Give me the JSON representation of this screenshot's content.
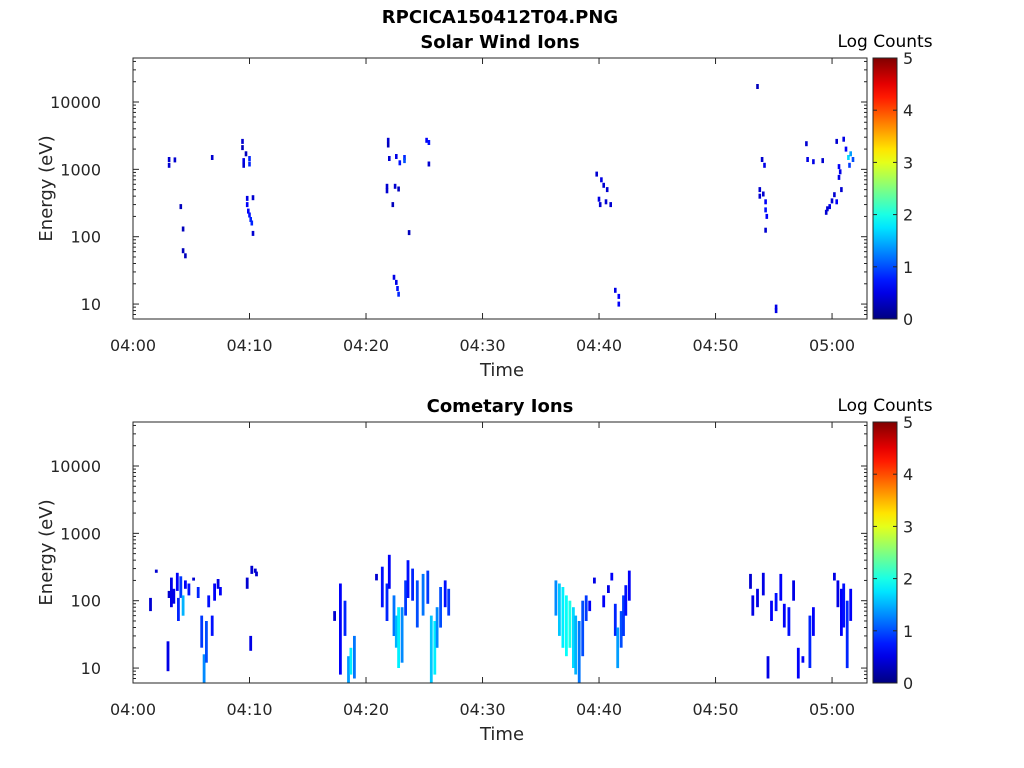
{
  "figure_title": "RPCICA150412T04.PNG",
  "chart_data": [
    {
      "type": "heatmap",
      "title": "Solar Wind Ions",
      "xlabel": "Time",
      "ylabel": "Energy (eV)",
      "yscale": "log",
      "ylim": [
        6,
        45000
      ],
      "xlim": [
        "04:00",
        "05:03"
      ],
      "x_ticks": [
        "04:00",
        "04:10",
        "04:20",
        "04:30",
        "04:40",
        "04:50",
        "05:00"
      ],
      "y_ticks": [
        "10",
        "100",
        "1000",
        "10000"
      ],
      "colorbar": {
        "label": "Log Counts",
        "min": 0,
        "max": 5,
        "ticks": [
          "0",
          "1",
          "2",
          "3",
          "4",
          "5"
        ],
        "colormap": "jet"
      },
      "grid": false,
      "points": [
        [
          3.1,
          1400,
          0.4
        ],
        [
          3.1,
          1150,
          0.4
        ],
        [
          3.6,
          1380,
          0.4
        ],
        [
          4.1,
          280,
          0.3
        ],
        [
          4.3,
          130,
          0.3
        ],
        [
          4.3,
          62,
          0.3
        ],
        [
          4.5,
          52,
          0.3
        ],
        [
          6.8,
          1500,
          0.4
        ],
        [
          9.4,
          2600,
          0.4
        ],
        [
          9.4,
          2100,
          0.3
        ],
        [
          9.7,
          1700,
          0.3
        ],
        [
          9.5,
          1350,
          0.5
        ],
        [
          9.5,
          1150,
          0.4
        ],
        [
          10.0,
          1450,
          0.8
        ],
        [
          10.0,
          1200,
          0.8
        ],
        [
          9.8,
          370,
          0.5
        ],
        [
          9.8,
          300,
          0.6
        ],
        [
          9.9,
          240,
          0.6
        ],
        [
          10.0,
          210,
          0.7
        ],
        [
          10.1,
          180,
          0.8
        ],
        [
          10.2,
          160,
          0.8
        ],
        [
          10.3,
          380,
          0.4
        ],
        [
          10.3,
          112,
          0.4
        ],
        [
          21.9,
          2700,
          0.4
        ],
        [
          21.9,
          2300,
          0.3
        ],
        [
          22.0,
          1450,
          0.4
        ],
        [
          22.6,
          1550,
          0.5
        ],
        [
          22.9,
          1250,
          0.7
        ],
        [
          23.3,
          1500,
          0.8
        ],
        [
          23.3,
          1350,
          1.0
        ],
        [
          21.8,
          560,
          0.4
        ],
        [
          21.8,
          480,
          0.4
        ],
        [
          22.5,
          560,
          0.4
        ],
        [
          22.8,
          510,
          0.3
        ],
        [
          22.3,
          300,
          0.3
        ],
        [
          23.7,
          115,
          0.3
        ],
        [
          25.2,
          2700,
          0.6
        ],
        [
          25.4,
          2500,
          0.7
        ],
        [
          25.4,
          1200,
          0.4
        ],
        [
          22.4,
          25,
          0.5
        ],
        [
          22.6,
          21,
          0.5
        ],
        [
          22.7,
          17,
          0.7
        ],
        [
          22.8,
          14,
          0.8
        ],
        [
          39.8,
          850,
          0.4
        ],
        [
          40.2,
          700,
          0.5
        ],
        [
          40.4,
          580,
          0.4
        ],
        [
          40.7,
          500,
          0.4
        ],
        [
          40.0,
          360,
          0.5
        ],
        [
          40.1,
          300,
          0.4
        ],
        [
          40.6,
          330,
          0.4
        ],
        [
          41.0,
          300,
          0.4
        ],
        [
          41.4,
          16,
          0.5
        ],
        [
          41.7,
          13,
          0.6
        ],
        [
          41.7,
          10,
          0.6
        ],
        [
          53.6,
          17000,
          0.3
        ],
        [
          54.0,
          1400,
          0.4
        ],
        [
          54.2,
          1150,
          0.5
        ],
        [
          53.8,
          500,
          0.4
        ],
        [
          53.8,
          400,
          0.4
        ],
        [
          54.1,
          430,
          0.4
        ],
        [
          54.3,
          330,
          0.6
        ],
        [
          54.3,
          250,
          0.7
        ],
        [
          54.4,
          200,
          0.6
        ],
        [
          54.3,
          125,
          0.4
        ],
        [
          55.2,
          9,
          0.5
        ],
        [
          55.2,
          8,
          0.5
        ],
        [
          57.8,
          2400,
          0.4
        ],
        [
          57.9,
          1400,
          0.5
        ],
        [
          58.4,
          1300,
          0.5
        ],
        [
          59.2,
          1350,
          0.4
        ],
        [
          60.4,
          2600,
          0.4
        ],
        [
          61.0,
          2800,
          0.5
        ],
        [
          61.2,
          2000,
          0.6
        ],
        [
          61.4,
          1500,
          1.7
        ],
        [
          61.6,
          1700,
          1.4
        ],
        [
          61.8,
          1400,
          1.0
        ],
        [
          61.5,
          1150,
          0.9
        ],
        [
          60.6,
          1100,
          0.6
        ],
        [
          60.7,
          920,
          0.5
        ],
        [
          60.6,
          760,
          0.5
        ],
        [
          60.8,
          500,
          0.4
        ],
        [
          60.2,
          420,
          0.4
        ],
        [
          60.0,
          340,
          0.4
        ],
        [
          59.8,
          280,
          0.5
        ],
        [
          59.6,
          260,
          0.4
        ],
        [
          59.5,
          230,
          0.4
        ],
        [
          60.4,
          330,
          0.6
        ]
      ]
    },
    {
      "type": "heatmap",
      "title": "Cometary Ions",
      "xlabel": "Time",
      "ylabel": "Energy (eV)",
      "yscale": "log",
      "ylim": [
        6,
        45000
      ],
      "xlim": [
        "04:00",
        "05:03"
      ],
      "x_ticks": [
        "04:00",
        "04:10",
        "04:20",
        "04:30",
        "04:40",
        "04:50",
        "05:00"
      ],
      "y_ticks": [
        "10",
        "100",
        "1000",
        "10000"
      ],
      "colorbar": {
        "label": "Log Counts",
        "min": 0,
        "max": 5,
        "ticks": [
          "0",
          "1",
          "2",
          "3",
          "4",
          "5"
        ],
        "colormap": "jet"
      },
      "grid": false,
      "columns": [
        [
          1.5,
          70,
          110,
          0.4
        ],
        [
          2.0,
          260,
          290,
          0.4
        ],
        [
          3.0,
          9,
          25,
          0.5
        ],
        [
          3.1,
          110,
          140,
          0.4
        ],
        [
          3.3,
          80,
          220,
          0.5
        ],
        [
          3.5,
          90,
          150,
          0.5
        ],
        [
          3.8,
          140,
          260,
          0.6
        ],
        [
          3.9,
          50,
          110,
          0.8
        ],
        [
          4.1,
          110,
          230,
          0.9
        ],
        [
          4.3,
          60,
          120,
          1.5
        ],
        [
          4.5,
          150,
          200,
          0.6
        ],
        [
          4.8,
          120,
          180,
          0.7
        ],
        [
          5.2,
          200,
          220,
          0.4
        ],
        [
          5.6,
          110,
          160,
          0.8
        ],
        [
          5.9,
          20,
          60,
          0.9
        ],
        [
          6.1,
          6,
          16,
          1.3
        ],
        [
          6.3,
          12,
          50,
          1.0
        ],
        [
          6.5,
          80,
          120,
          0.7
        ],
        [
          6.8,
          30,
          60,
          0.7
        ],
        [
          7.0,
          100,
          180,
          0.6
        ],
        [
          7.3,
          150,
          210,
          0.5
        ],
        [
          7.5,
          120,
          160,
          0.6
        ],
        [
          9.8,
          150,
          220,
          0.4
        ],
        [
          10.1,
          18,
          30,
          0.5
        ],
        [
          10.2,
          250,
          330,
          0.4
        ],
        [
          10.5,
          260,
          300,
          0.4
        ],
        [
          10.6,
          230,
          270,
          0.4
        ],
        [
          17.3,
          50,
          70,
          0.4
        ],
        [
          17.8,
          8,
          180,
          0.6
        ],
        [
          18.2,
          30,
          100,
          0.8
        ],
        [
          18.5,
          6,
          15,
          1.4
        ],
        [
          18.7,
          8,
          20,
          1.8
        ],
        [
          19.0,
          7,
          30,
          1.2
        ],
        [
          20.9,
          200,
          250,
          0.4
        ],
        [
          21.4,
          80,
          320,
          0.7
        ],
        [
          21.8,
          50,
          180,
          0.8
        ],
        [
          22.0,
          150,
          480,
          0.6
        ],
        [
          22.4,
          30,
          120,
          1.2
        ],
        [
          22.6,
          20,
          60,
          1.5
        ],
        [
          22.8,
          10,
          80,
          1.8
        ],
        [
          23.1,
          12,
          80,
          1.3
        ],
        [
          23.4,
          60,
          200,
          0.9
        ],
        [
          23.6,
          110,
          400,
          0.7
        ],
        [
          24.0,
          100,
          300,
          0.8
        ],
        [
          24.4,
          40,
          200,
          1.0
        ],
        [
          24.9,
          60,
          250,
          1.2
        ],
        [
          25.3,
          90,
          280,
          0.9
        ],
        [
          25.6,
          6,
          60,
          1.6
        ],
        [
          25.9,
          8,
          50,
          1.8
        ],
        [
          26.1,
          20,
          80,
          1.3
        ],
        [
          26.4,
          40,
          160,
          1.0
        ],
        [
          26.8,
          80,
          200,
          0.7
        ],
        [
          27.1,
          60,
          150,
          0.9
        ],
        [
          36.3,
          60,
          200,
          1.3
        ],
        [
          36.6,
          30,
          180,
          1.6
        ],
        [
          36.9,
          20,
          160,
          1.8
        ],
        [
          37.2,
          15,
          120,
          1.9
        ],
        [
          37.5,
          20,
          100,
          2.0
        ],
        [
          37.8,
          10,
          80,
          1.7
        ],
        [
          38.0,
          8,
          60,
          1.5
        ],
        [
          38.3,
          6,
          50,
          1.2
        ],
        [
          38.6,
          15,
          100,
          1.0
        ],
        [
          38.9,
          50,
          120,
          0.9
        ],
        [
          39.2,
          70,
          100,
          0.6
        ],
        [
          39.6,
          180,
          220,
          0.5
        ],
        [
          40.4,
          80,
          120,
          0.6
        ],
        [
          40.8,
          130,
          170,
          0.5
        ],
        [
          41.1,
          200,
          260,
          0.6
        ],
        [
          41.4,
          30,
          90,
          0.8
        ],
        [
          41.6,
          10,
          40,
          1.4
        ],
        [
          41.9,
          20,
          70,
          1.0
        ],
        [
          42.1,
          30,
          120,
          0.9
        ],
        [
          42.3,
          60,
          170,
          0.7
        ],
        [
          42.6,
          100,
          280,
          0.6
        ],
        [
          53.0,
          150,
          250,
          0.4
        ],
        [
          53.2,
          60,
          120,
          0.5
        ],
        [
          53.6,
          80,
          150,
          0.5
        ],
        [
          54.1,
          120,
          260,
          0.5
        ],
        [
          54.5,
          7,
          15,
          0.5
        ],
        [
          54.8,
          50,
          100,
          0.6
        ],
        [
          55.2,
          70,
          130,
          0.7
        ],
        [
          55.6,
          100,
          250,
          0.6
        ],
        [
          55.9,
          40,
          90,
          0.6
        ],
        [
          56.3,
          30,
          80,
          0.7
        ],
        [
          56.7,
          100,
          200,
          0.5
        ],
        [
          57.1,
          7,
          20,
          0.6
        ],
        [
          57.5,
          12,
          15,
          0.6
        ],
        [
          58.1,
          10,
          60,
          0.8
        ],
        [
          58.4,
          30,
          80,
          0.6
        ],
        [
          60.2,
          200,
          260,
          0.5
        ],
        [
          60.5,
          80,
          200,
          0.5
        ],
        [
          60.8,
          30,
          150,
          0.6
        ],
        [
          61.0,
          40,
          180,
          0.7
        ],
        [
          61.3,
          10,
          100,
          0.8
        ],
        [
          61.6,
          50,
          150,
          0.6
        ]
      ]
    }
  ]
}
